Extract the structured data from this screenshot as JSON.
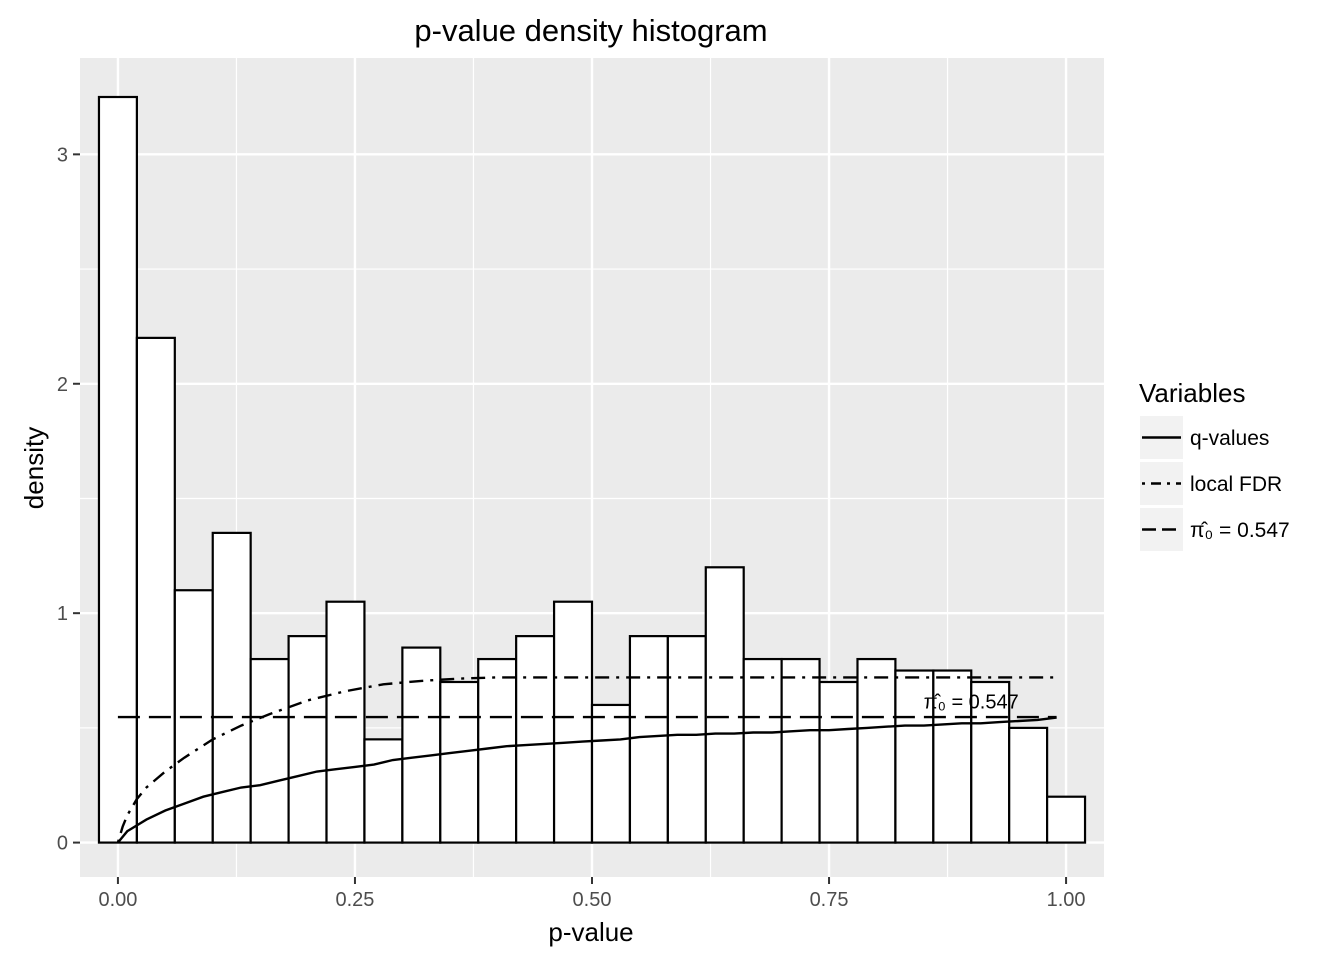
{
  "chart_data": {
    "type": "bar",
    "title": "p-value density histogram",
    "xlabel": "p-value",
    "ylabel": "density",
    "xlim": [
      -0.04,
      1.04
    ],
    "ylim": [
      -0.15,
      3.42
    ],
    "xticks": [
      {
        "value": 0,
        "label": "0.00"
      },
      {
        "value": 0.25,
        "label": "0.25"
      },
      {
        "value": 0.5,
        "label": "0.50"
      },
      {
        "value": 0.75,
        "label": "0.75"
      },
      {
        "value": 1,
        "label": "1.00"
      }
    ],
    "yticks": [
      {
        "value": 0,
        "label": "0"
      },
      {
        "value": 1,
        "label": "1"
      },
      {
        "value": 2,
        "label": "2"
      },
      {
        "value": 3,
        "label": "3"
      }
    ],
    "grid": true,
    "bins": {
      "centers": [
        0.0,
        0.04,
        0.08,
        0.12,
        0.16,
        0.2,
        0.24,
        0.28,
        0.32,
        0.36,
        0.4,
        0.44,
        0.48,
        0.52,
        0.56,
        0.6,
        0.64,
        0.68,
        0.72,
        0.76,
        0.8,
        0.84,
        0.88,
        0.92,
        0.96,
        1.0
      ],
      "width": 0.04,
      "values": [
        3.25,
        2.2,
        1.1,
        1.35,
        0.8,
        0.9,
        1.05,
        0.45,
        0.85,
        0.7,
        0.8,
        0.9,
        1.05,
        0.6,
        0.9,
        0.9,
        1.2,
        0.8,
        0.8,
        0.7,
        0.8,
        0.75,
        0.75,
        0.7,
        0.5,
        0.2
      ]
    },
    "series": [
      {
        "name": "q-values",
        "line": "solid",
        "x": [
          0.0,
          0.01,
          0.03,
          0.05,
          0.07,
          0.09,
          0.11,
          0.13,
          0.15,
          0.17,
          0.19,
          0.21,
          0.23,
          0.25,
          0.27,
          0.29,
          0.31,
          0.33,
          0.35,
          0.37,
          0.39,
          0.41,
          0.43,
          0.45,
          0.47,
          0.49,
          0.51,
          0.53,
          0.55,
          0.57,
          0.59,
          0.61,
          0.63,
          0.65,
          0.67,
          0.69,
          0.71,
          0.73,
          0.75,
          0.77,
          0.79,
          0.81,
          0.83,
          0.85,
          0.87,
          0.89,
          0.91,
          0.93,
          0.95,
          0.97,
          0.99
        ],
        "y": [
          0.0,
          0.05,
          0.1,
          0.14,
          0.17,
          0.2,
          0.22,
          0.24,
          0.25,
          0.27,
          0.29,
          0.31,
          0.32,
          0.33,
          0.34,
          0.36,
          0.37,
          0.38,
          0.39,
          0.4,
          0.41,
          0.42,
          0.425,
          0.43,
          0.435,
          0.44,
          0.445,
          0.45,
          0.46,
          0.465,
          0.47,
          0.47,
          0.475,
          0.475,
          0.48,
          0.48,
          0.485,
          0.49,
          0.49,
          0.495,
          0.5,
          0.505,
          0.51,
          0.51,
          0.515,
          0.52,
          0.52,
          0.525,
          0.53,
          0.535,
          0.545
        ]
      },
      {
        "name": "local FDR",
        "line": "dotdash",
        "x": [
          0.0,
          0.005,
          0.01,
          0.02,
          0.03,
          0.05,
          0.07,
          0.1,
          0.13,
          0.16,
          0.2,
          0.24,
          0.28,
          0.32,
          0.36,
          0.4,
          0.5,
          0.6,
          0.7,
          0.8,
          0.9,
          0.99
        ],
        "y": [
          0.0,
          0.07,
          0.12,
          0.19,
          0.24,
          0.31,
          0.37,
          0.45,
          0.51,
          0.56,
          0.62,
          0.66,
          0.69,
          0.705,
          0.715,
          0.72,
          0.72,
          0.72,
          0.72,
          0.72,
          0.72,
          0.72
        ]
      },
      {
        "name": "π̂₀ = 0.547",
        "line": "dashed",
        "x": [
          0.0,
          0.99
        ],
        "y": [
          0.547,
          0.547
        ]
      }
    ],
    "annotations": [
      {
        "text": "π̂₀ = 0.547",
        "x": 0.9,
        "y": 0.62
      }
    ],
    "legend": {
      "title": "Variables",
      "position": "right",
      "entries": [
        {
          "label": "q-values",
          "line": "solid"
        },
        {
          "label": "local FDR",
          "line": "dotdash"
        },
        {
          "label": "π̂₀ = 0.547",
          "line": "dashed"
        }
      ]
    },
    "colors": {
      "panel_background": "#ebebeb",
      "grid": "#ffffff",
      "bar_fill": "#ffffff",
      "bar_stroke": "#000000",
      "lines": "#000000",
      "tick_text": "#4d4d4d",
      "legend_key_background": "#f2f2f2"
    }
  }
}
